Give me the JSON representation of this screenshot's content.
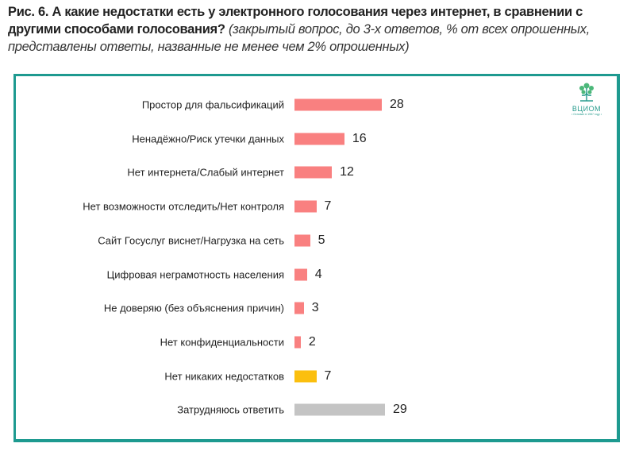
{
  "title": {
    "bold": "Рис. 6. А какие недостатки есть у электронного голосования через интернет, в сравнении с другими способами голосования?",
    "italic": "(закрытый вопрос, до 3-х ответов, % от всех опрошенных, представлены ответы, названные не менее чем 2% опрошенных)"
  },
  "logo": {
    "name": "ВЦИОМ",
    "sub": "• Основан в 1987 году •"
  },
  "colors": {
    "frame": "#1e9a90",
    "main": "#f98080",
    "none": "#fbbf0e",
    "hard": "#c4c4c4"
  },
  "chart_data": {
    "type": "bar",
    "orientation": "horizontal",
    "categories": [
      "Простор для фальсификаций",
      "Ненадёжно/Риск утечки данных",
      "Нет интернета/Слабый интернет",
      "Нет возможности отследить/Нет контроля",
      "Сайт Госуслуг виснет/Нагрузка на сеть",
      "Цифровая неграмотность населения",
      "Не доверяю (без объяснения причин)",
      "Нет конфиденциальности",
      "Нет никаких недостатков",
      "Затрудняюсь ответить"
    ],
    "values": [
      28,
      16,
      12,
      7,
      5,
      4,
      3,
      2,
      7,
      29
    ],
    "bar_colors": [
      "#f98080",
      "#f98080",
      "#f98080",
      "#f98080",
      "#f98080",
      "#f98080",
      "#f98080",
      "#f98080",
      "#fbbf0e",
      "#c4c4c4"
    ],
    "unit": "%",
    "grid": false
  }
}
